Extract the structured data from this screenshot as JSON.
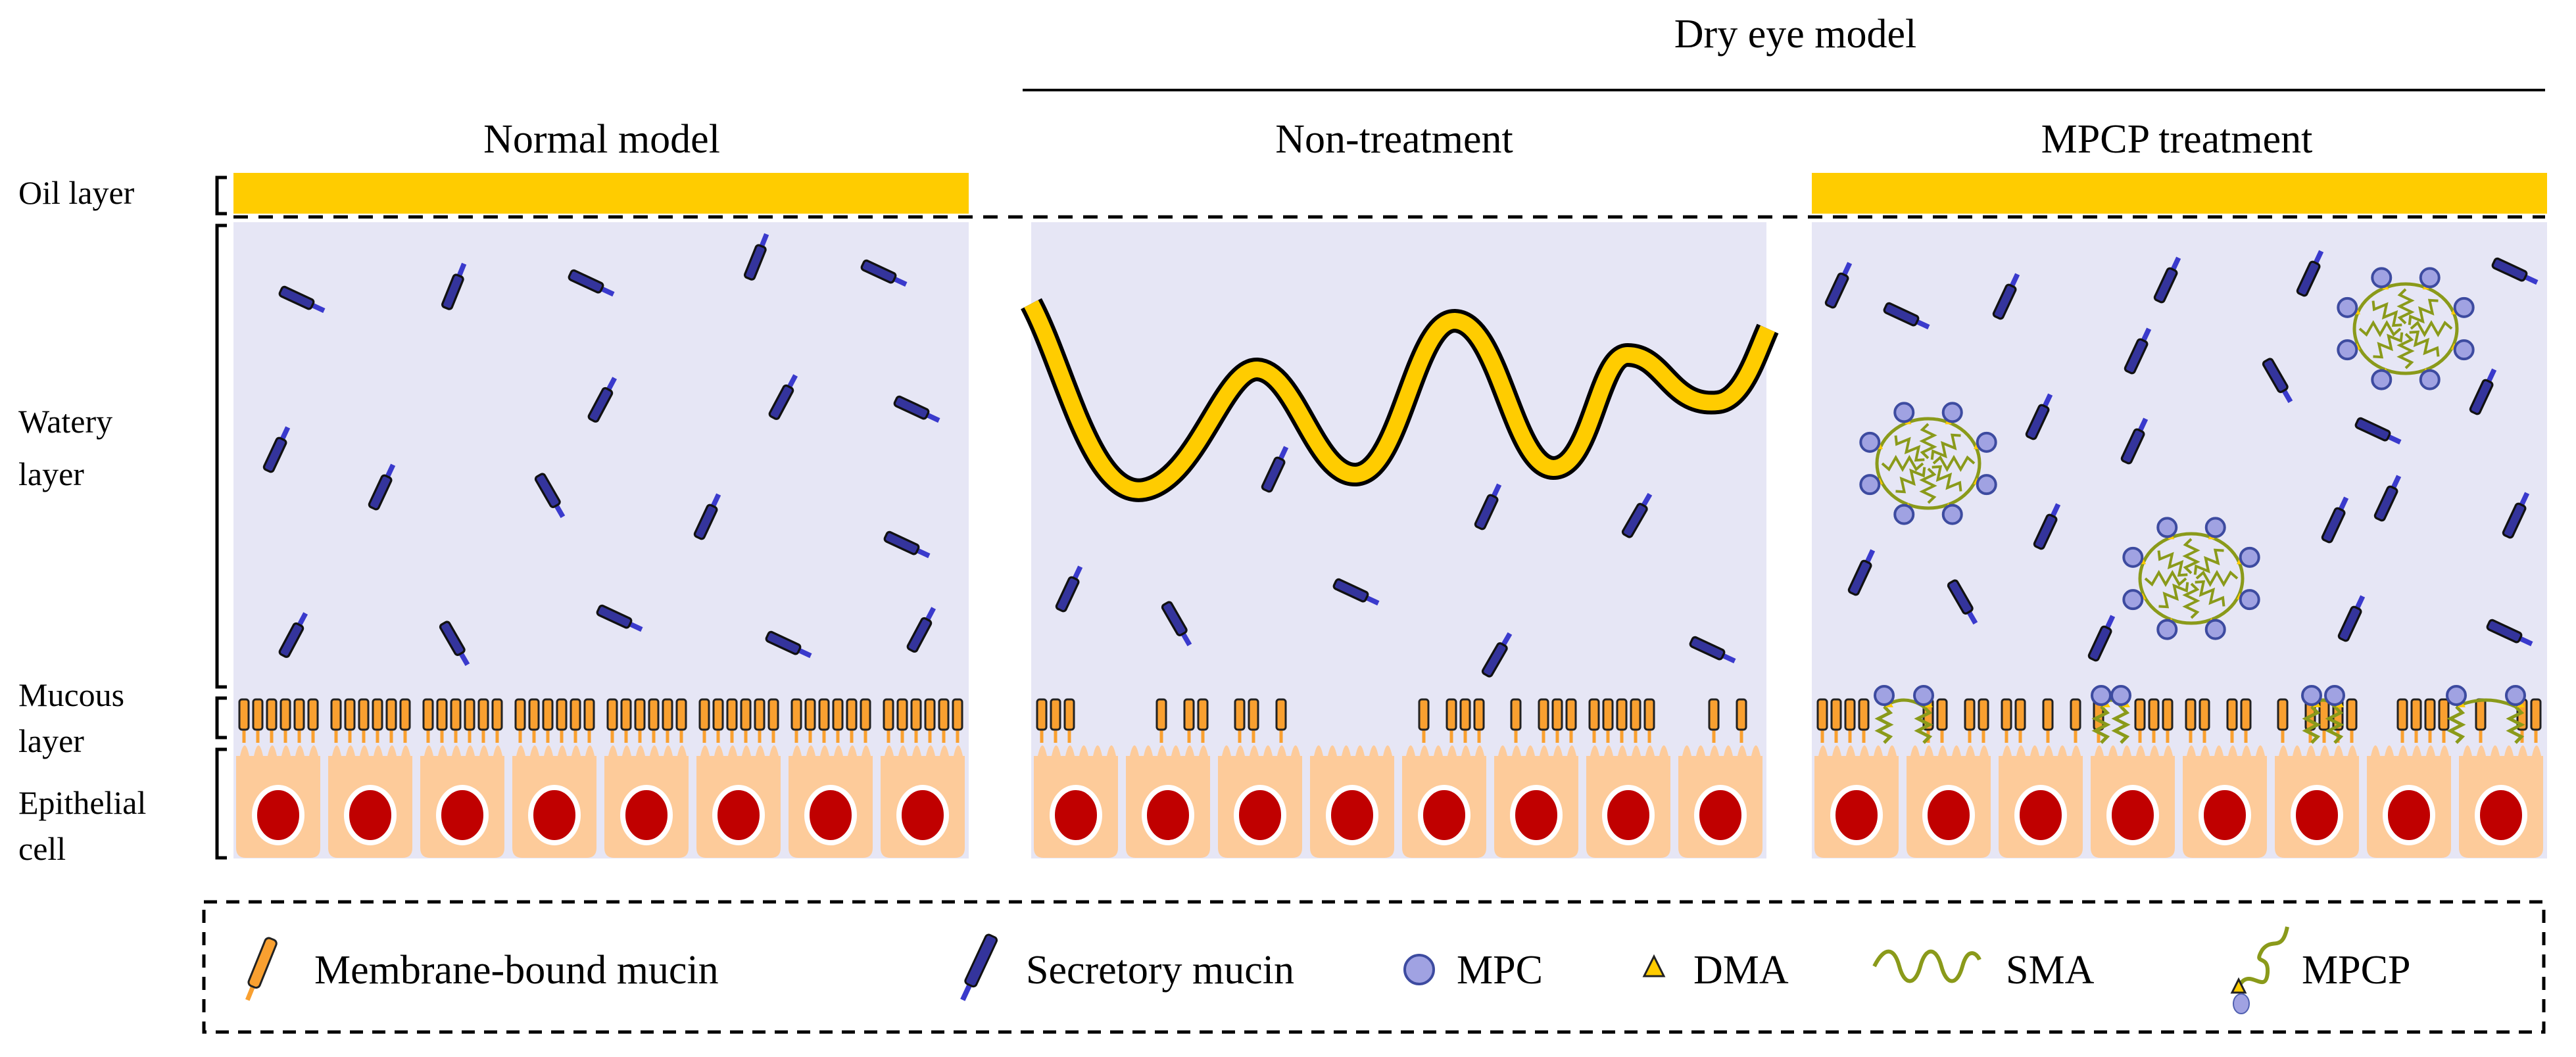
{
  "group_title": "Dry eye model",
  "panels": [
    {
      "title": "Normal model"
    },
    {
      "title": "Non-treatment"
    },
    {
      "title": "MPCP treatment"
    }
  ],
  "layers": {
    "oil": "Oil layer",
    "watery_1": "Watery",
    "watery_2": "layer",
    "mucous_1": "Mucous",
    "mucous_2": "layer",
    "epithelial_1": "Epithelial",
    "epithelial_2": "cell"
  },
  "legend": {
    "membrane_mucin": "Membrane-bound mucin",
    "secretory_mucin": "Secretory mucin",
    "mpc": "MPC",
    "dma": "DMA",
    "sma": "SMA",
    "mpcp": "MPCP"
  },
  "colors": {
    "oil": "#FFCC00",
    "water": "#E6E6F5",
    "secretory_mucin": "#34349C",
    "membrane_mucin": "#F9A030",
    "cell": "#FDCB9A",
    "nucleus": "#C00000",
    "sma": "#8A9A1A",
    "mpc": "#A0A2E2"
  }
}
